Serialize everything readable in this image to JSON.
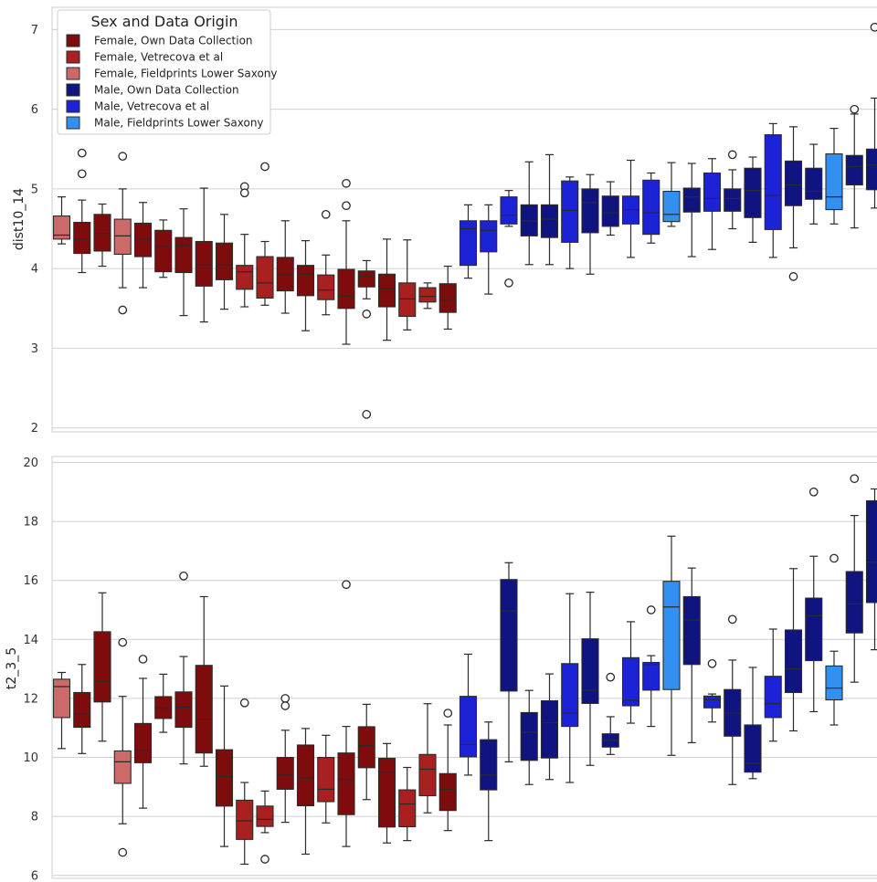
{
  "chart_data": [
    {
      "type": "box",
      "ylabel": "dist10_14",
      "ylim": [
        1.95,
        7.28
      ],
      "yticks": [
        "2",
        "3",
        "4",
        "5",
        "6",
        "7"
      ],
      "grid": "horizontal",
      "legend": {
        "title": "Sex and Data Origin",
        "placement": "top-left",
        "entries": [
          {
            "label": "Female, Own Data Collection",
            "color": "#7f0c0c"
          },
          {
            "label": "Female, Vetrecova et al",
            "color": "#a82020"
          },
          {
            "label": "Female, Fieldprints Lower Saxony",
            "color": "#cc6a6a"
          },
          {
            "label": "Male, Own Data Collection",
            "color": "#0f1480"
          },
          {
            "label": "Male, Vetrecova et al",
            "color": "#1c22d6"
          },
          {
            "label": "Male, Fieldprints Lower Saxony",
            "color": "#3390f0"
          }
        ]
      },
      "boxes": [
        {
          "group": 2,
          "min": 4.31,
          "q1": 4.37,
          "median": 4.42,
          "q3": 4.66,
          "max": 4.9,
          "outliers": []
        },
        {
          "group": 0,
          "min": 3.95,
          "q1": 4.19,
          "median": 4.37,
          "q3": 4.58,
          "max": 4.86,
          "outliers": [
            5.45,
            5.19
          ]
        },
        {
          "group": 0,
          "min": 4.03,
          "q1": 4.22,
          "median": 4.44,
          "q3": 4.68,
          "max": 4.81,
          "outliers": []
        },
        {
          "group": 2,
          "min": 3.76,
          "q1": 4.18,
          "median": 4.41,
          "q3": 4.62,
          "max": 5.0,
          "outliers": [
            5.41,
            3.48
          ]
        },
        {
          "group": 0,
          "min": 3.76,
          "q1": 4.15,
          "median": 4.37,
          "q3": 4.57,
          "max": 4.83,
          "outliers": []
        },
        {
          "group": 0,
          "min": 3.89,
          "q1": 3.96,
          "median": 4.28,
          "q3": 4.48,
          "max": 4.61,
          "outliers": []
        },
        {
          "group": 0,
          "min": 3.41,
          "q1": 3.95,
          "median": 4.29,
          "q3": 4.39,
          "max": 4.75,
          "outliers": []
        },
        {
          "group": 0,
          "min": 3.33,
          "q1": 3.78,
          "median": 4.05,
          "q3": 4.34,
          "max": 5.01,
          "outliers": []
        },
        {
          "group": 0,
          "min": 3.49,
          "q1": 3.86,
          "median": 4.05,
          "q3": 4.32,
          "max": 4.68,
          "outliers": []
        },
        {
          "group": 1,
          "min": 3.52,
          "q1": 3.74,
          "median": 3.96,
          "q3": 4.04,
          "max": 4.43,
          "outliers": [
            5.03,
            4.95
          ]
        },
        {
          "group": 1,
          "min": 3.54,
          "q1": 3.63,
          "median": 3.82,
          "q3": 4.15,
          "max": 4.34,
          "outliers": [
            5.28
          ]
        },
        {
          "group": 0,
          "min": 3.44,
          "q1": 3.72,
          "median": 3.92,
          "q3": 4.14,
          "max": 4.6,
          "outliers": []
        },
        {
          "group": 0,
          "min": 3.22,
          "q1": 3.66,
          "median": 3.93,
          "q3": 4.04,
          "max": 4.35,
          "outliers": []
        },
        {
          "group": 1,
          "min": 3.42,
          "q1": 3.61,
          "median": 3.73,
          "q3": 3.92,
          "max": 4.17,
          "outliers": [
            4.68
          ]
        },
        {
          "group": 0,
          "min": 3.05,
          "q1": 3.5,
          "median": 3.65,
          "q3": 3.99,
          "max": 4.6,
          "outliers": [
            5.07,
            4.79
          ]
        },
        {
          "group": 0,
          "min": 3.62,
          "q1": 3.77,
          "median": 3.9,
          "q3": 3.97,
          "max": 4.1,
          "outliers": [
            3.43,
            2.17
          ]
        },
        {
          "group": 0,
          "min": 3.1,
          "q1": 3.52,
          "median": 3.75,
          "q3": 3.93,
          "max": 4.37,
          "outliers": []
        },
        {
          "group": 1,
          "min": 3.23,
          "q1": 3.4,
          "median": 3.62,
          "q3": 3.82,
          "max": 4.36,
          "outliers": []
        },
        {
          "group": 1,
          "min": 3.5,
          "q1": 3.58,
          "median": 3.65,
          "q3": 3.76,
          "max": 3.82,
          "outliers": []
        },
        {
          "group": 0,
          "min": 3.24,
          "q1": 3.45,
          "median": 3.6,
          "q3": 3.81,
          "max": 4.03,
          "outliers": []
        },
        {
          "group": 4,
          "min": 3.88,
          "q1": 4.04,
          "median": 4.5,
          "q3": 4.6,
          "max": 4.8,
          "outliers": []
        },
        {
          "group": 4,
          "min": 3.68,
          "q1": 4.21,
          "median": 4.48,
          "q3": 4.6,
          "max": 4.8,
          "outliers": []
        },
        {
          "group": 4,
          "min": 4.53,
          "q1": 4.56,
          "median": 4.67,
          "q3": 4.9,
          "max": 4.98,
          "outliers": [
            3.82
          ]
        },
        {
          "group": 3,
          "min": 4.05,
          "q1": 4.41,
          "median": 4.6,
          "q3": 4.8,
          "max": 5.34,
          "outliers": []
        },
        {
          "group": 3,
          "min": 4.05,
          "q1": 4.39,
          "median": 4.62,
          "q3": 4.8,
          "max": 5.43,
          "outliers": []
        },
        {
          "group": 4,
          "min": 4.0,
          "q1": 4.33,
          "median": 4.73,
          "q3": 5.1,
          "max": 5.15,
          "outliers": []
        },
        {
          "group": 3,
          "min": 3.93,
          "q1": 4.45,
          "median": 4.83,
          "q3": 5.0,
          "max": 5.18,
          "outliers": []
        },
        {
          "group": 3,
          "min": 4.42,
          "q1": 4.53,
          "median": 4.7,
          "q3": 4.91,
          "max": 5.09,
          "outliers": []
        },
        {
          "group": 4,
          "min": 4.14,
          "q1": 4.56,
          "median": 4.74,
          "q3": 4.91,
          "max": 5.36,
          "outliers": []
        },
        {
          "group": 4,
          "min": 4.32,
          "q1": 4.43,
          "median": 4.7,
          "q3": 5.11,
          "max": 5.2,
          "outliers": []
        },
        {
          "group": 5,
          "min": 4.53,
          "q1": 4.59,
          "median": 4.68,
          "q3": 4.97,
          "max": 5.33,
          "outliers": []
        },
        {
          "group": 3,
          "min": 4.15,
          "q1": 4.71,
          "median": 4.9,
          "q3": 5.01,
          "max": 5.32,
          "outliers": []
        },
        {
          "group": 4,
          "min": 4.24,
          "q1": 4.72,
          "median": 4.88,
          "q3": 5.2,
          "max": 5.38,
          "outliers": []
        },
        {
          "group": 3,
          "min": 4.5,
          "q1": 4.72,
          "median": 4.88,
          "q3": 5.0,
          "max": 5.24,
          "outliers": [
            5.43
          ]
        },
        {
          "group": 3,
          "min": 4.33,
          "q1": 4.64,
          "median": 4.98,
          "q3": 5.26,
          "max": 5.4,
          "outliers": []
        },
        {
          "group": 4,
          "min": 4.14,
          "q1": 4.49,
          "median": 4.92,
          "q3": 5.68,
          "max": 5.82,
          "outliers": []
        },
        {
          "group": 3,
          "min": 4.26,
          "q1": 4.79,
          "median": 5.05,
          "q3": 5.35,
          "max": 5.78,
          "outliers": [
            3.9
          ]
        },
        {
          "group": 3,
          "min": 4.56,
          "q1": 4.87,
          "median": 4.97,
          "q3": 5.26,
          "max": 5.56,
          "outliers": []
        },
        {
          "group": 5,
          "min": 4.56,
          "q1": 4.74,
          "median": 4.9,
          "q3": 5.44,
          "max": 5.76,
          "outliers": []
        },
        {
          "group": 3,
          "min": 4.51,
          "q1": 5.05,
          "median": 5.28,
          "q3": 5.42,
          "max": 5.94,
          "outliers": [
            6.0
          ]
        },
        {
          "group": 3,
          "min": 4.76,
          "q1": 4.99,
          "median": 5.3,
          "q3": 5.5,
          "max": 6.14,
          "outliers": [
            7.03
          ]
        }
      ]
    },
    {
      "type": "box",
      "ylabel": "t2_3_5",
      "ylim": [
        5.9,
        20.2
      ],
      "yticks": [
        "6",
        "8",
        "10",
        "12",
        "14",
        "16",
        "18",
        "20"
      ],
      "grid": "horizontal",
      "boxes": [
        {
          "group": 2,
          "min": 10.3,
          "q1": 11.35,
          "median": 12.4,
          "q3": 12.65,
          "max": 12.88,
          "outliers": []
        },
        {
          "group": 0,
          "min": 10.13,
          "q1": 11.02,
          "median": 11.48,
          "q3": 12.2,
          "max": 13.15,
          "outliers": []
        },
        {
          "group": 0,
          "min": 10.55,
          "q1": 11.88,
          "median": 12.58,
          "q3": 14.26,
          "max": 15.58,
          "outliers": []
        },
        {
          "group": 2,
          "min": 7.75,
          "q1": 9.12,
          "median": 9.85,
          "q3": 10.22,
          "max": 12.07,
          "outliers": [
            13.9,
            6.78
          ]
        },
        {
          "group": 0,
          "min": 8.28,
          "q1": 9.82,
          "median": 10.24,
          "q3": 11.15,
          "max": 12.68,
          "outliers": [
            13.33
          ]
        },
        {
          "group": 0,
          "min": 10.85,
          "q1": 11.32,
          "median": 11.66,
          "q3": 12.06,
          "max": 12.82,
          "outliers": []
        },
        {
          "group": 0,
          "min": 9.78,
          "q1": 11.02,
          "median": 11.7,
          "q3": 12.22,
          "max": 13.42,
          "outliers": [
            16.15
          ]
        },
        {
          "group": 0,
          "min": 9.7,
          "q1": 10.15,
          "median": 11.3,
          "q3": 13.12,
          "max": 15.45,
          "outliers": []
        },
        {
          "group": 0,
          "min": 6.98,
          "q1": 8.35,
          "median": 9.35,
          "q3": 10.26,
          "max": 12.42,
          "outliers": []
        },
        {
          "group": 1,
          "min": 6.38,
          "q1": 7.22,
          "median": 7.85,
          "q3": 8.55,
          "max": 9.15,
          "outliers": [
            11.85
          ]
        },
        {
          "group": 1,
          "min": 7.45,
          "q1": 7.66,
          "median": 7.9,
          "q3": 8.35,
          "max": 8.86,
          "outliers": [
            6.55
          ]
        },
        {
          "group": 0,
          "min": 7.8,
          "q1": 8.92,
          "median": 9.4,
          "q3": 10.0,
          "max": 10.92,
          "outliers": [
            12.0,
            11.75
          ]
        },
        {
          "group": 0,
          "min": 6.72,
          "q1": 8.36,
          "median": 9.3,
          "q3": 10.42,
          "max": 10.98,
          "outliers": []
        },
        {
          "group": 1,
          "min": 7.78,
          "q1": 8.5,
          "median": 8.92,
          "q3": 10.0,
          "max": 10.75,
          "outliers": []
        },
        {
          "group": 0,
          "min": 6.98,
          "q1": 8.06,
          "median": 9.25,
          "q3": 10.15,
          "max": 11.05,
          "outliers": [
            15.86
          ]
        },
        {
          "group": 0,
          "min": 8.57,
          "q1": 9.65,
          "median": 10.4,
          "q3": 11.04,
          "max": 11.8,
          "outliers": []
        },
        {
          "group": 0,
          "min": 7.1,
          "q1": 7.64,
          "median": 9.5,
          "q3": 9.97,
          "max": 10.47,
          "outliers": []
        },
        {
          "group": 1,
          "min": 7.18,
          "q1": 7.65,
          "median": 8.42,
          "q3": 8.9,
          "max": 9.66,
          "outliers": []
        },
        {
          "group": 1,
          "min": 8.12,
          "q1": 8.7,
          "median": 9.6,
          "q3": 10.1,
          "max": 11.82,
          "outliers": []
        },
        {
          "group": 0,
          "min": 7.52,
          "q1": 8.2,
          "median": 8.92,
          "q3": 9.45,
          "max": 11.1,
          "outliers": [
            11.5
          ]
        },
        {
          "group": 4,
          "min": 9.4,
          "q1": 10.02,
          "median": 10.44,
          "q3": 12.07,
          "max": 13.5,
          "outliers": []
        },
        {
          "group": 3,
          "min": 7.18,
          "q1": 8.9,
          "median": 9.4,
          "q3": 10.6,
          "max": 11.2,
          "outliers": []
        },
        {
          "group": 3,
          "min": 9.85,
          "q1": 12.25,
          "median": 14.97,
          "q3": 16.03,
          "max": 16.6,
          "outliers": []
        },
        {
          "group": 3,
          "min": 9.08,
          "q1": 9.9,
          "median": 10.85,
          "q3": 11.52,
          "max": 12.27,
          "outliers": []
        },
        {
          "group": 3,
          "min": 9.25,
          "q1": 9.98,
          "median": 11.18,
          "q3": 11.92,
          "max": 12.83,
          "outliers": []
        },
        {
          "group": 4,
          "min": 9.15,
          "q1": 11.05,
          "median": 11.5,
          "q3": 13.18,
          "max": 15.55,
          "outliers": []
        },
        {
          "group": 3,
          "min": 9.73,
          "q1": 11.83,
          "median": 12.28,
          "q3": 14.02,
          "max": 15.6,
          "outliers": []
        },
        {
          "group": 3,
          "min": 10.1,
          "q1": 10.35,
          "median": 10.58,
          "q3": 10.8,
          "max": 11.38,
          "outliers": [
            12.72
          ]
        },
        {
          "group": 4,
          "min": 11.16,
          "q1": 11.75,
          "median": 11.94,
          "q3": 13.38,
          "max": 14.6,
          "outliers": []
        },
        {
          "group": 4,
          "min": 11.05,
          "q1": 12.28,
          "median": 13.15,
          "q3": 13.22,
          "max": 13.45,
          "outliers": [
            15.0
          ]
        },
        {
          "group": 5,
          "min": 10.07,
          "q1": 12.3,
          "median": 15.1,
          "q3": 15.97,
          "max": 17.5,
          "outliers": []
        },
        {
          "group": 3,
          "min": 10.5,
          "q1": 13.15,
          "median": 14.66,
          "q3": 15.45,
          "max": 16.42,
          "outliers": []
        },
        {
          "group": 4,
          "min": 11.2,
          "q1": 11.68,
          "median": 11.96,
          "q3": 12.08,
          "max": 12.15,
          "outliers": [
            13.18
          ]
        },
        {
          "group": 3,
          "min": 9.08,
          "q1": 10.72,
          "median": 11.5,
          "q3": 12.3,
          "max": 13.3,
          "outliers": [
            14.68
          ]
        },
        {
          "group": 3,
          "min": 9.28,
          "q1": 9.5,
          "median": 9.8,
          "q3": 11.1,
          "max": 13.05,
          "outliers": []
        },
        {
          "group": 4,
          "min": 10.55,
          "q1": 11.35,
          "median": 11.82,
          "q3": 12.75,
          "max": 14.35,
          "outliers": []
        },
        {
          "group": 3,
          "min": 10.9,
          "q1": 12.2,
          "median": 13.0,
          "q3": 14.32,
          "max": 16.4,
          "outliers": []
        },
        {
          "group": 3,
          "min": 11.55,
          "q1": 13.28,
          "median": 14.8,
          "q3": 15.4,
          "max": 16.82,
          "outliers": [
            19.0
          ]
        },
        {
          "group": 5,
          "min": 11.1,
          "q1": 11.95,
          "median": 12.35,
          "q3": 13.1,
          "max": 13.6,
          "outliers": [
            16.75
          ]
        },
        {
          "group": 3,
          "min": 12.55,
          "q1": 14.22,
          "median": 15.2,
          "q3": 16.3,
          "max": 18.2,
          "outliers": [
            19.45
          ]
        },
        {
          "group": 3,
          "min": 13.65,
          "q1": 15.25,
          "median": 16.62,
          "q3": 18.7,
          "max": 19.1,
          "outliers": []
        }
      ]
    }
  ]
}
